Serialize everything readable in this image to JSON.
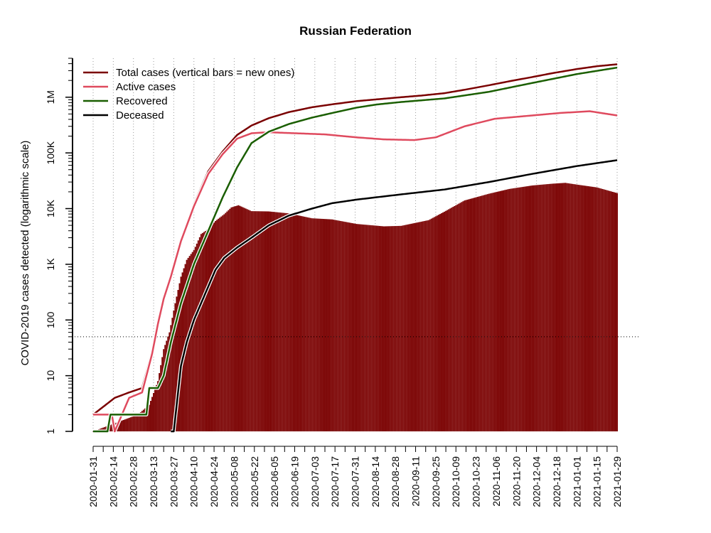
{
  "chart_data": {
    "type": "bar",
    "title": "Russian Federation",
    "xlabel": "",
    "ylabel": "COVID-2019 cases detected (logarithmic scale)",
    "yscale": "log",
    "ylim": [
      1,
      5000000
    ],
    "xlim": [
      "2020-01-31",
      "2021-01-29"
    ],
    "grid": "vertical dotted at x ticks",
    "legend_position": "top-left",
    "reference_line_y": 50,
    "x_tick_labels": [
      "2020-01-31",
      "2020-02-14",
      "2020-02-28",
      "2020-03-13",
      "2020-03-27",
      "2020-04-10",
      "2020-04-24",
      "2020-05-08",
      "2020-05-22",
      "2020-06-05",
      "2020-06-19",
      "2020-07-03",
      "2020-07-17",
      "2020-07-31",
      "2020-08-14",
      "2020-08-28",
      "2020-09-11",
      "2020-09-25",
      "2020-10-09",
      "2020-10-23",
      "2020-11-06",
      "2020-11-20",
      "2020-12-04",
      "2020-12-18",
      "2021-01-01",
      "2021-01-15",
      "2021-01-29"
    ],
    "y_tick_values": [
      1,
      10,
      100,
      1000,
      10000,
      100000,
      1000000
    ],
    "y_tick_labels": [
      "1",
      "10",
      "100",
      "1K",
      "10K",
      "100K",
      "1M"
    ],
    "legend": [
      {
        "label": "Total cases (vertical bars = new ones)",
        "color": "#7a0000"
      },
      {
        "label": "Active cases",
        "color": "#df4a5e"
      },
      {
        "label": "Recovered",
        "color": "#1a5e00"
      },
      {
        "label": "Deceased",
        "color": "#000000"
      }
    ],
    "colors": {
      "bars": "#7a0000",
      "total": "#7a0000",
      "active": "#df4a5e",
      "recovered": "#1a5e00",
      "deceased": "#000000"
    },
    "new_cases": {
      "dates": [
        "2020-01-31",
        "2020-03-02",
        "2020-03-10",
        "2020-03-16",
        "2020-03-20",
        "2020-03-24",
        "2020-03-28",
        "2020-04-01",
        "2020-04-05",
        "2020-04-10",
        "2020-04-15",
        "2020-04-20",
        "2020-04-25",
        "2020-05-01",
        "2020-05-06",
        "2020-05-11",
        "2020-05-20",
        "2020-06-01",
        "2020-06-15",
        "2020-07-01",
        "2020-07-15",
        "2020-08-01",
        "2020-08-20",
        "2020-09-01",
        "2020-09-20",
        "2020-10-01",
        "2020-10-15",
        "2020-11-01",
        "2020-11-15",
        "2020-12-01",
        "2020-12-15",
        "2020-12-24",
        "2021-01-01",
        "2021-01-15",
        "2021-01-29"
      ],
      "values": [
        1,
        2,
        3,
        8,
        30,
        60,
        200,
        600,
        1200,
        1800,
        3500,
        4300,
        6000,
        7900,
        10500,
        11500,
        9000,
        8900,
        8200,
        6700,
        6400,
        5300,
        4800,
        4900,
        6200,
        8800,
        14000,
        18500,
        22500,
        26000,
        28000,
        29000,
        27000,
        24000,
        19000
      ]
    },
    "series": [
      {
        "name": "Total cases (vertical bars = new ones)",
        "dates": [
          "2020-01-31",
          "2020-02-15",
          "2020-02-25",
          "2020-03-05",
          "2020-03-12",
          "2020-03-16",
          "2020-03-20",
          "2020-03-25",
          "2020-04-01",
          "2020-04-10",
          "2020-04-20",
          "2020-04-30",
          "2020-05-10",
          "2020-05-20",
          "2020-06-01",
          "2020-06-15",
          "2020-07-01",
          "2020-07-15",
          "2020-08-01",
          "2020-08-15",
          "2020-09-01",
          "2020-09-15",
          "2020-10-01",
          "2020-10-15",
          "2020-11-01",
          "2020-11-15",
          "2020-12-01",
          "2020-12-15",
          "2021-01-01",
          "2021-01-15",
          "2021-01-29"
        ],
        "values": [
          2,
          4,
          5,
          6,
          28,
          90,
          250,
          660,
          2800,
          12000,
          47000,
          106000,
          210000,
          310000,
          420000,
          540000,
          660000,
          745000,
          850000,
          915000,
          1000000,
          1070000,
          1180000,
          1360000,
          1640000,
          1930000,
          2300000,
          2700000,
          3200000,
          3600000,
          3900000
        ]
      },
      {
        "name": "Active cases",
        "dates": [
          "2020-01-31",
          "2020-02-13",
          "2020-02-15",
          "2020-02-25",
          "2020-03-05",
          "2020-03-12",
          "2020-03-16",
          "2020-03-20",
          "2020-03-25",
          "2020-04-01",
          "2020-04-10",
          "2020-04-20",
          "2020-04-30",
          "2020-05-10",
          "2020-05-20",
          "2020-06-01",
          "2020-06-10",
          "2020-06-20",
          "2020-07-10",
          "2020-08-01",
          "2020-08-20",
          "2020-09-10",
          "2020-09-25",
          "2020-10-15",
          "2020-11-05",
          "2020-12-01",
          "2020-12-20",
          "2021-01-10",
          "2021-01-29"
        ],
        "values": [
          2,
          2,
          1,
          4,
          5,
          25,
          85,
          240,
          600,
          2600,
          11000,
          42000,
          95000,
          180000,
          225000,
          235000,
          230000,
          225000,
          215000,
          190000,
          175000,
          170000,
          190000,
          300000,
          410000,
          470000,
          520000,
          560000,
          470000
        ]
      },
      {
        "name": "Recovered",
        "dates": [
          "2020-01-31",
          "2020-02-10",
          "2020-02-12",
          "2020-03-08",
          "2020-03-10",
          "2020-03-16",
          "2020-03-20",
          "2020-03-25",
          "2020-04-01",
          "2020-04-10",
          "2020-04-20",
          "2020-04-30",
          "2020-05-10",
          "2020-05-20",
          "2020-06-01",
          "2020-06-15",
          "2020-07-01",
          "2020-07-15",
          "2020-08-01",
          "2020-08-15",
          "2020-09-01",
          "2020-10-01",
          "2020-11-01",
          "2020-12-01",
          "2021-01-01",
          "2021-01-29"
        ],
        "values": [
          1,
          1,
          2,
          2,
          6,
          6,
          10,
          40,
          200,
          1000,
          4000,
          16000,
          55000,
          150000,
          240000,
          330000,
          430000,
          520000,
          650000,
          740000,
          820000,
          950000,
          1250000,
          1800000,
          2600000,
          3400000
        ]
      },
      {
        "name": "Deceased",
        "dates": [
          "2020-03-25",
          "2020-03-27",
          "2020-04-01",
          "2020-04-05",
          "2020-04-10",
          "2020-04-15",
          "2020-04-20",
          "2020-04-25",
          "2020-05-01",
          "2020-05-10",
          "2020-05-20",
          "2020-06-01",
          "2020-06-15",
          "2020-07-01",
          "2020-07-15",
          "2020-08-01",
          "2020-09-01",
          "2020-10-01",
          "2020-11-01",
          "2020-12-01",
          "2021-01-01",
          "2021-01-29"
        ],
        "values": [
          1,
          1,
          15,
          40,
          100,
          200,
          400,
          800,
          1300,
          2000,
          3000,
          5000,
          7500,
          10000,
          12500,
          14500,
          18000,
          22000,
          30000,
          42000,
          58000,
          74000
        ]
      }
    ]
  }
}
